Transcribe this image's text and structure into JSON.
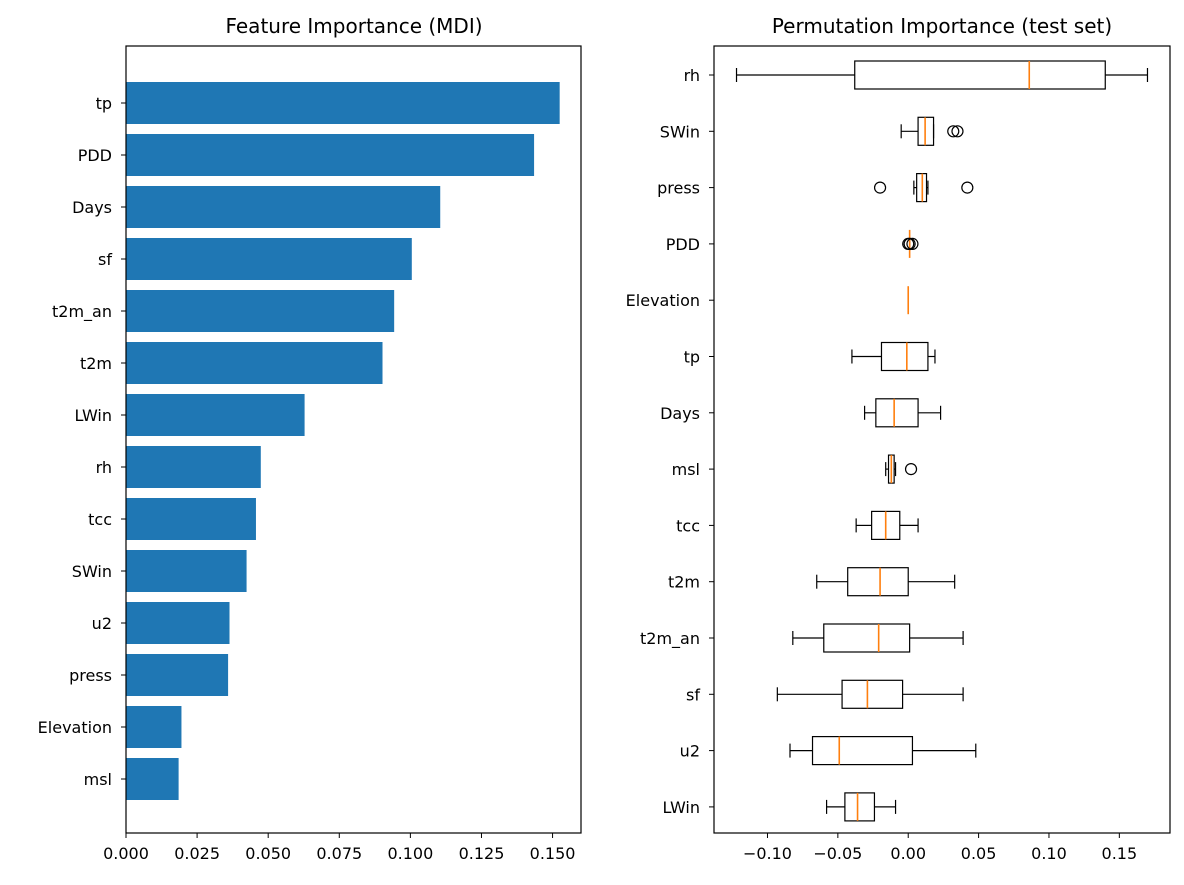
{
  "chart_data": [
    {
      "type": "bar",
      "orientation": "horizontal",
      "title": "Feature Importance (MDI)",
      "xlabel": "",
      "ylabel": "",
      "categories": [
        "tp",
        "PDD",
        "Days",
        "sf",
        "t2m_an",
        "t2m",
        "LWin",
        "rh",
        "tcc",
        "SWin",
        "u2",
        "press",
        "Elevation",
        "msl"
      ],
      "values": [
        0.1525,
        0.1435,
        0.1105,
        0.1005,
        0.0943,
        0.0902,
        0.0628,
        0.0474,
        0.0457,
        0.0424,
        0.0364,
        0.0359,
        0.0195,
        0.0185
      ],
      "xlim": [
        0,
        0.16
      ],
      "xticks": [
        "0.000",
        "0.025",
        "0.050",
        "0.075",
        "0.100",
        "0.125",
        "0.150"
      ],
      "xtick_values": [
        0,
        0.025,
        0.05,
        0.075,
        0.1,
        0.125,
        0.15
      ],
      "color": "#1f77b4",
      "grid": false
    },
    {
      "type": "boxplot",
      "orientation": "horizontal",
      "title": "Permutation Importance (test set)",
      "xlabel": "",
      "ylabel": "",
      "xlim": [
        -0.138,
        0.186
      ],
      "xticks": [
        "−0.10",
        "−0.05",
        "0.00",
        "0.05",
        "0.10",
        "0.15"
      ],
      "xtick_values": [
        -0.1,
        -0.05,
        0,
        0.05,
        0.1,
        0.15
      ],
      "box_color": "#000000",
      "median_color": "#ff7f0e",
      "grid": false,
      "boxes": [
        {
          "label": "rh",
          "whislo": -0.122,
          "q1": -0.038,
          "med": 0.086,
          "q3": 0.14,
          "whishi": 0.17,
          "fliers": []
        },
        {
          "label": "SWin",
          "whislo": -0.005,
          "q1": 0.007,
          "med": 0.012,
          "q3": 0.018,
          "whishi": 0.018,
          "fliers": [
            0.032,
            0.035
          ]
        },
        {
          "label": "press",
          "whislo": 0.004,
          "q1": 0.006,
          "med": 0.01,
          "q3": 0.013,
          "whishi": 0.014,
          "fliers": [
            -0.02,
            0.042
          ]
        },
        {
          "label": "PDD",
          "whislo": 0.001,
          "q1": 0.001,
          "med": 0.001,
          "q3": 0.001,
          "whishi": 0.001,
          "fliers": [
            0.0,
            0.001,
            0.003
          ]
        },
        {
          "label": "Elevation",
          "whislo": 0.0,
          "q1": 0.0,
          "med": 0.0,
          "q3": 0.0,
          "whishi": 0.0,
          "fliers": []
        },
        {
          "label": "tp",
          "whislo": -0.04,
          "q1": -0.019,
          "med": -0.001,
          "q3": 0.014,
          "whishi": 0.019,
          "fliers": []
        },
        {
          "label": "Days",
          "whislo": -0.031,
          "q1": -0.023,
          "med": -0.01,
          "q3": 0.007,
          "whishi": 0.023,
          "fliers": []
        },
        {
          "label": "msl",
          "whislo": -0.016,
          "q1": -0.014,
          "med": -0.012,
          "q3": -0.01,
          "whishi": -0.009,
          "fliers": [
            0.002
          ]
        },
        {
          "label": "tcc",
          "whislo": -0.037,
          "q1": -0.026,
          "med": -0.016,
          "q3": -0.006,
          "whishi": 0.007,
          "fliers": []
        },
        {
          "label": "t2m",
          "whislo": -0.065,
          "q1": -0.043,
          "med": -0.02,
          "q3": 0.0,
          "whishi": 0.033,
          "fliers": []
        },
        {
          "label": "t2m_an",
          "whislo": -0.082,
          "q1": -0.06,
          "med": -0.021,
          "q3": 0.001,
          "whishi": 0.039,
          "fliers": []
        },
        {
          "label": "sf",
          "whislo": -0.093,
          "q1": -0.047,
          "med": -0.029,
          "q3": -0.004,
          "whishi": 0.039,
          "fliers": []
        },
        {
          "label": "u2",
          "whislo": -0.084,
          "q1": -0.068,
          "med": -0.049,
          "q3": 0.003,
          "whishi": 0.048,
          "fliers": []
        },
        {
          "label": "LWin",
          "whislo": -0.058,
          "q1": -0.045,
          "med": -0.036,
          "q3": -0.024,
          "whishi": -0.009,
          "fliers": []
        }
      ]
    }
  ]
}
